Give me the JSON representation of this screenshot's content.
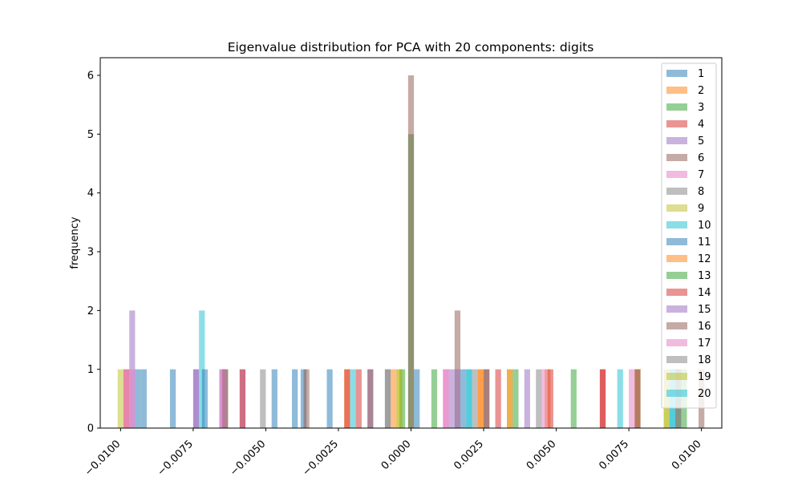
{
  "chart_data": {
    "type": "bar",
    "title": "Eigenvalue distribution for PCA with 20 components: digits",
    "xlabel": "",
    "ylabel": "frequency",
    "xlim": [
      -0.0107,
      0.0107
    ],
    "ylim": [
      0,
      6.3
    ],
    "x_ticks": [
      -0.01,
      -0.0075,
      -0.005,
      -0.0025,
      0.0,
      0.0025,
      0.005,
      0.0075,
      0.01
    ],
    "x_tick_labels": [
      "−0.0100",
      "−0.0075",
      "−0.0050",
      "−0.0025",
      "0.0000",
      "0.0025",
      "0.0050",
      "0.0075",
      "0.0100"
    ],
    "y_ticks": [
      0,
      1,
      2,
      3,
      4,
      5,
      6
    ],
    "y_tick_labels": [
      "0",
      "1",
      "2",
      "3",
      "4",
      "5",
      "6"
    ],
    "grid": false,
    "legend_position": "top-right",
    "bar_width": 0.0002,
    "series": [
      {
        "name": "1",
        "color": "#1f77b4",
        "bars": [
          {
            "x": -0.0092,
            "y": 1
          },
          {
            "x": -0.0082,
            "y": 1
          },
          {
            "x": -0.0037,
            "y": 1
          },
          {
            "x": -0.0028,
            "y": 1
          },
          {
            "x": 0.0002,
            "y": 1
          }
        ]
      },
      {
        "name": "2",
        "color": "#ff7f0e",
        "bars": [
          {
            "x": -0.0022,
            "y": 1
          },
          {
            "x": -0.0006,
            "y": 1
          },
          {
            "x": 0.0024,
            "y": 1
          },
          {
            "x": 0.0047,
            "y": 1
          }
        ]
      },
      {
        "name": "3",
        "color": "#2ca02c",
        "bars": [
          {
            "x": 0.0,
            "y": 5
          },
          {
            "x": 0.0008,
            "y": 1
          },
          {
            "x": 0.0056,
            "y": 1
          },
          {
            "x": 0.0078,
            "y": 1
          },
          {
            "x": 0.0092,
            "y": 1
          }
        ]
      },
      {
        "name": "4",
        "color": "#d62728",
        "bars": [
          {
            "x": -0.0098,
            "y": 1
          },
          {
            "x": -0.0022,
            "y": 1
          },
          {
            "x": 0.003,
            "y": 1
          },
          {
            "x": 0.0048,
            "y": 1
          },
          {
            "x": 0.0066,
            "y": 1
          }
        ]
      },
      {
        "name": "5",
        "color": "#9467bd",
        "bars": [
          {
            "x": -0.0096,
            "y": 2
          },
          {
            "x": -0.0074,
            "y": 1
          },
          {
            "x": -0.0065,
            "y": 1
          },
          {
            "x": -0.0058,
            "y": 1
          },
          {
            "x": -0.0014,
            "y": 1
          },
          {
            "x": 0.0014,
            "y": 1
          },
          {
            "x": 0.004,
            "y": 1
          }
        ]
      },
      {
        "name": "6",
        "color": "#8c564b",
        "bars": [
          {
            "x": 0.0,
            "y": 6
          },
          {
            "x": 0.0016,
            "y": 2
          },
          {
            "x": 0.0026,
            "y": 1
          },
          {
            "x": 0.01,
            "y": 1
          }
        ]
      },
      {
        "name": "7",
        "color": "#e377c2",
        "bars": [
          {
            "x": -0.0098,
            "y": 1
          },
          {
            "x": -0.0096,
            "y": 1
          },
          {
            "x": 0.0012,
            "y": 1
          },
          {
            "x": 0.0046,
            "y": 1
          },
          {
            "x": 0.0076,
            "y": 1
          }
        ]
      },
      {
        "name": "8",
        "color": "#7f7f7f",
        "bars": [
          {
            "x": -0.0064,
            "y": 1
          },
          {
            "x": -0.0051,
            "y": 1
          },
          {
            "x": -0.0008,
            "y": 1
          },
          {
            "x": 0.0044,
            "y": 1
          },
          {
            "x": 0.0092,
            "y": 1
          }
        ]
      },
      {
        "name": "9",
        "color": "#bcbd22",
        "bars": [
          {
            "x": -0.01,
            "y": 1
          },
          {
            "x": -0.0004,
            "y": 1
          },
          {
            "x": 0.0034,
            "y": 1
          },
          {
            "x": 0.0088,
            "y": 1
          }
        ]
      },
      {
        "name": "10",
        "color": "#17becf",
        "bars": [
          {
            "x": -0.0072,
            "y": 2
          },
          {
            "x": -0.002,
            "y": 1
          },
          {
            "x": 0.002,
            "y": 1
          },
          {
            "x": 0.0072,
            "y": 1
          },
          {
            "x": 0.009,
            "y": 1
          }
        ]
      },
      {
        "name": "11",
        "color": "#1f77b4",
        "bars": [
          {
            "x": -0.0094,
            "y": 1
          },
          {
            "x": -0.0071,
            "y": 1
          },
          {
            "x": -0.0047,
            "y": 1
          },
          {
            "x": -0.004,
            "y": 1
          },
          {
            "x": 0.0018,
            "y": 1
          }
        ]
      },
      {
        "name": "12",
        "color": "#ff7f0e",
        "bars": [
          {
            "x": 0.0024,
            "y": 1
          },
          {
            "x": 0.0034,
            "y": 1
          }
        ]
      },
      {
        "name": "13",
        "color": "#2ca02c",
        "bars": [
          {
            "x": -0.0003,
            "y": 1
          },
          {
            "x": 0.0036,
            "y": 1
          },
          {
            "x": 0.0094,
            "y": 1
          }
        ]
      },
      {
        "name": "14",
        "color": "#d62728",
        "bars": [
          {
            "x": -0.0058,
            "y": 1
          },
          {
            "x": -0.0018,
            "y": 1
          },
          {
            "x": 0.0066,
            "y": 1
          },
          {
            "x": 0.0078,
            "y": 1
          }
        ]
      },
      {
        "name": "15",
        "color": "#9467bd",
        "bars": [
          {
            "x": -0.0074,
            "y": 1
          },
          {
            "x": 0.0016,
            "y": 1
          }
        ]
      },
      {
        "name": "16",
        "color": "#8c564b",
        "bars": [
          {
            "x": -0.0064,
            "y": 1
          },
          {
            "x": -0.0036,
            "y": 1
          },
          {
            "x": -0.0014,
            "y": 1
          },
          {
            "x": 0.0026,
            "y": 1
          }
        ]
      },
      {
        "name": "17",
        "color": "#e377c2",
        "bars": [
          {
            "x": -0.0065,
            "y": 1
          },
          {
            "x": 0.0012,
            "y": 1
          }
        ]
      },
      {
        "name": "18",
        "color": "#7f7f7f",
        "bars": [
          {
            "x": -0.0008,
            "y": 1
          },
          {
            "x": 0.0022,
            "y": 1
          },
          {
            "x": 0.0092,
            "y": 1
          }
        ]
      },
      {
        "name": "19",
        "color": "#bcbd22",
        "bars": [
          {
            "x": -0.0004,
            "y": 1
          },
          {
            "x": 0.0088,
            "y": 1
          }
        ]
      },
      {
        "name": "20",
        "color": "#17becf",
        "bars": [
          {
            "x": 0.002,
            "y": 1
          },
          {
            "x": 0.009,
            "y": 1
          }
        ]
      }
    ]
  }
}
